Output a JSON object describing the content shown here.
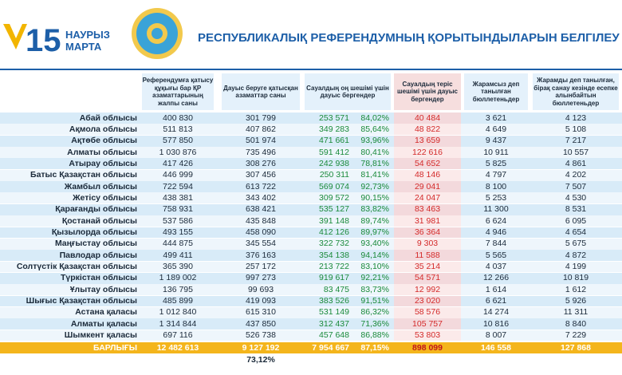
{
  "header": {
    "brand_number": "15",
    "brand_line1": "НАУРЫЗ",
    "brand_line2": "МАРТА",
    "title": "РЕСПУБЛИКАЛЫҚ РЕФЕРЕНДУМНЫҢ ҚОРЫТЫНДЫЛАРЫН БЕЛГІЛЕУ"
  },
  "table": {
    "columns": [
      "Референдумға қатысу құқығы бар ҚР азаматтарының жалпы саны",
      "Дауыс беруге қатысқан азаматтар саны",
      "Сауалдың оң шешімі үшін дауыс бергендер",
      "Сауалдың теріс шешімі үшін дауыс бергендер",
      "Жарамсыз деп танылған бюллетеньдер",
      "Жарамды деп танылған, бірақ санау кезінде есепке алынбайтын бюллетеньдер"
    ],
    "rows": [
      [
        "Абай облысы",
        "400 830",
        "301 799",
        "253 571",
        "84,02%",
        "40 484",
        "3 621",
        "4 123"
      ],
      [
        "Ақмола облысы",
        "511 813",
        "407 862",
        "349 283",
        "85,64%",
        "48 822",
        "4 649",
        "5 108"
      ],
      [
        "Ақтөбе облысы",
        "577 850",
        "501 974",
        "471 661",
        "93,96%",
        "13 659",
        "9 437",
        "7 217"
      ],
      [
        "Алматы облысы",
        "1 030 876",
        "735 496",
        "591 412",
        "80,41%",
        "122 616",
        "10 911",
        "10 557"
      ],
      [
        "Атырау облысы",
        "417 426",
        "308 276",
        "242 938",
        "78,81%",
        "54 652",
        "5 825",
        "4 861"
      ],
      [
        "Батыс Қазақстан облысы",
        "446 999",
        "307 456",
        "250 311",
        "81,41%",
        "48 146",
        "4 797",
        "4 202"
      ],
      [
        "Жамбыл облысы",
        "722 594",
        "613 722",
        "569 074",
        "92,73%",
        "29 041",
        "8 100",
        "7 507"
      ],
      [
        "Жетісу облысы",
        "438 381",
        "343 402",
        "309 572",
        "90,15%",
        "24 047",
        "5 253",
        "4 530"
      ],
      [
        "Қарағанды облысы",
        "758 931",
        "638 421",
        "535 127",
        "83,82%",
        "83 463",
        "11 300",
        "8 531"
      ],
      [
        "Қостанай облысы",
        "537 586",
        "435 848",
        "391 148",
        "89,74%",
        "31 981",
        "6 624",
        "6 095"
      ],
      [
        "Қызылорда облысы",
        "493 155",
        "458 090",
        "412 126",
        "89,97%",
        "36 364",
        "4 946",
        "4 654"
      ],
      [
        "Маңғыстау облысы",
        "444 875",
        "345 554",
        "322 732",
        "93,40%",
        "9 303",
        "7 844",
        "5 675"
      ],
      [
        "Павлодар облысы",
        "499 411",
        "376 163",
        "354 138",
        "94,14%",
        "11 588",
        "5 565",
        "4 872"
      ],
      [
        "Солтүстік Қазақстан облысы",
        "365 390",
        "257 172",
        "213 722",
        "83,10%",
        "35 214",
        "4 037",
        "4 199"
      ],
      [
        "Түркістан облысы",
        "1 189 002",
        "997 273",
        "919 617",
        "92,21%",
        "54 571",
        "12 266",
        "10 819"
      ],
      [
        "Ұлытау облысы",
        "136 795",
        "99 693",
        "83 475",
        "83,73%",
        "12 992",
        "1 614",
        "1 612"
      ],
      [
        "Шығыс Қазақстан облысы",
        "485 899",
        "419 093",
        "383 526",
        "91,51%",
        "23 020",
        "6 621",
        "5 926"
      ],
      [
        "Астана қаласы",
        "1 012 840",
        "615 310",
        "531 149",
        "86,32%",
        "58 576",
        "14 274",
        "11 311"
      ],
      [
        "Алматы қаласы",
        "1 314 844",
        "437 850",
        "312 437",
        "71,36%",
        "105 757",
        "10 816",
        "8 840"
      ],
      [
        "Шымкент қаласы",
        "697 116",
        "526 738",
        "457 648",
        "86,88%",
        "53 803",
        "8 007",
        "7 229"
      ]
    ],
    "total": [
      "БАРЛЫҒЫ",
      "12 482 613",
      "9 127 192",
      "7 954 667",
      "87,15%",
      "898 099",
      "146 558",
      "127 868"
    ],
    "turnout": "73,12%"
  }
}
